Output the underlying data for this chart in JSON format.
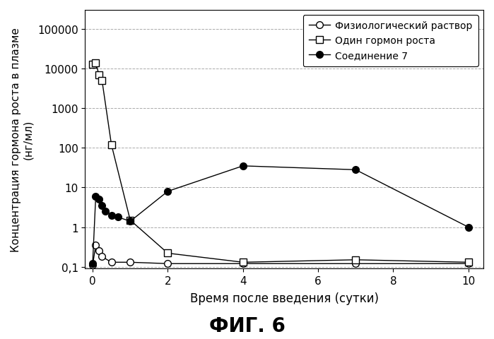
{
  "title": "ФИГ. 6",
  "ylabel_line1": "Концентрация гормона роста в плазме",
  "ylabel_line2": "(нг/мл)",
  "xlabel": "Время после введения (сутки)",
  "series": {
    "physio": {
      "label": "Физиологический раствор",
      "x": [
        0.0,
        0.083,
        0.167,
        0.25,
        0.5,
        1.0,
        2.0,
        4.0,
        7.0,
        10.0
      ],
      "y": [
        0.11,
        0.35,
        0.25,
        0.18,
        0.13,
        0.13,
        0.12,
        0.12,
        0.12,
        0.12
      ],
      "marker": "o",
      "fillstyle": "none",
      "color": "black"
    },
    "gh_alone": {
      "label": "Один гормон роста",
      "x": [
        0.0,
        0.083,
        0.167,
        0.25,
        0.5,
        1.0,
        2.0,
        4.0,
        7.0,
        10.0
      ],
      "y": [
        13000,
        14000,
        7000,
        5000,
        120,
        1.5,
        0.22,
        0.13,
        0.15,
        0.13
      ],
      "marker": "s",
      "fillstyle": "none",
      "color": "black"
    },
    "compound7": {
      "label": "Соединение 7",
      "x": [
        0.0,
        0.083,
        0.167,
        0.25,
        0.33,
        0.5,
        0.67,
        1.0,
        2.0,
        4.0,
        7.0,
        10.0
      ],
      "y": [
        0.12,
        6.0,
        5.0,
        3.5,
        2.5,
        2.0,
        1.8,
        1.4,
        8.0,
        35.0,
        28.0,
        1.0
      ],
      "marker": "o",
      "fillstyle": "full",
      "color": "black"
    }
  },
  "xlim": [
    -0.2,
    10.4
  ],
  "ylim": [
    0.09,
    300000
  ],
  "xticks": [
    0,
    2,
    4,
    6,
    8,
    10
  ],
  "yticks": [
    0.1,
    1,
    10,
    100,
    1000,
    10000,
    100000
  ],
  "ytick_labels": [
    "0,1",
    "1",
    "10",
    "100",
    "1000",
    "10000",
    "100000"
  ],
  "grid_color": "#aaaaaa",
  "legend_loc": "upper right",
  "fig_bg": "#ffffff",
  "ax_bg": "#ffffff"
}
